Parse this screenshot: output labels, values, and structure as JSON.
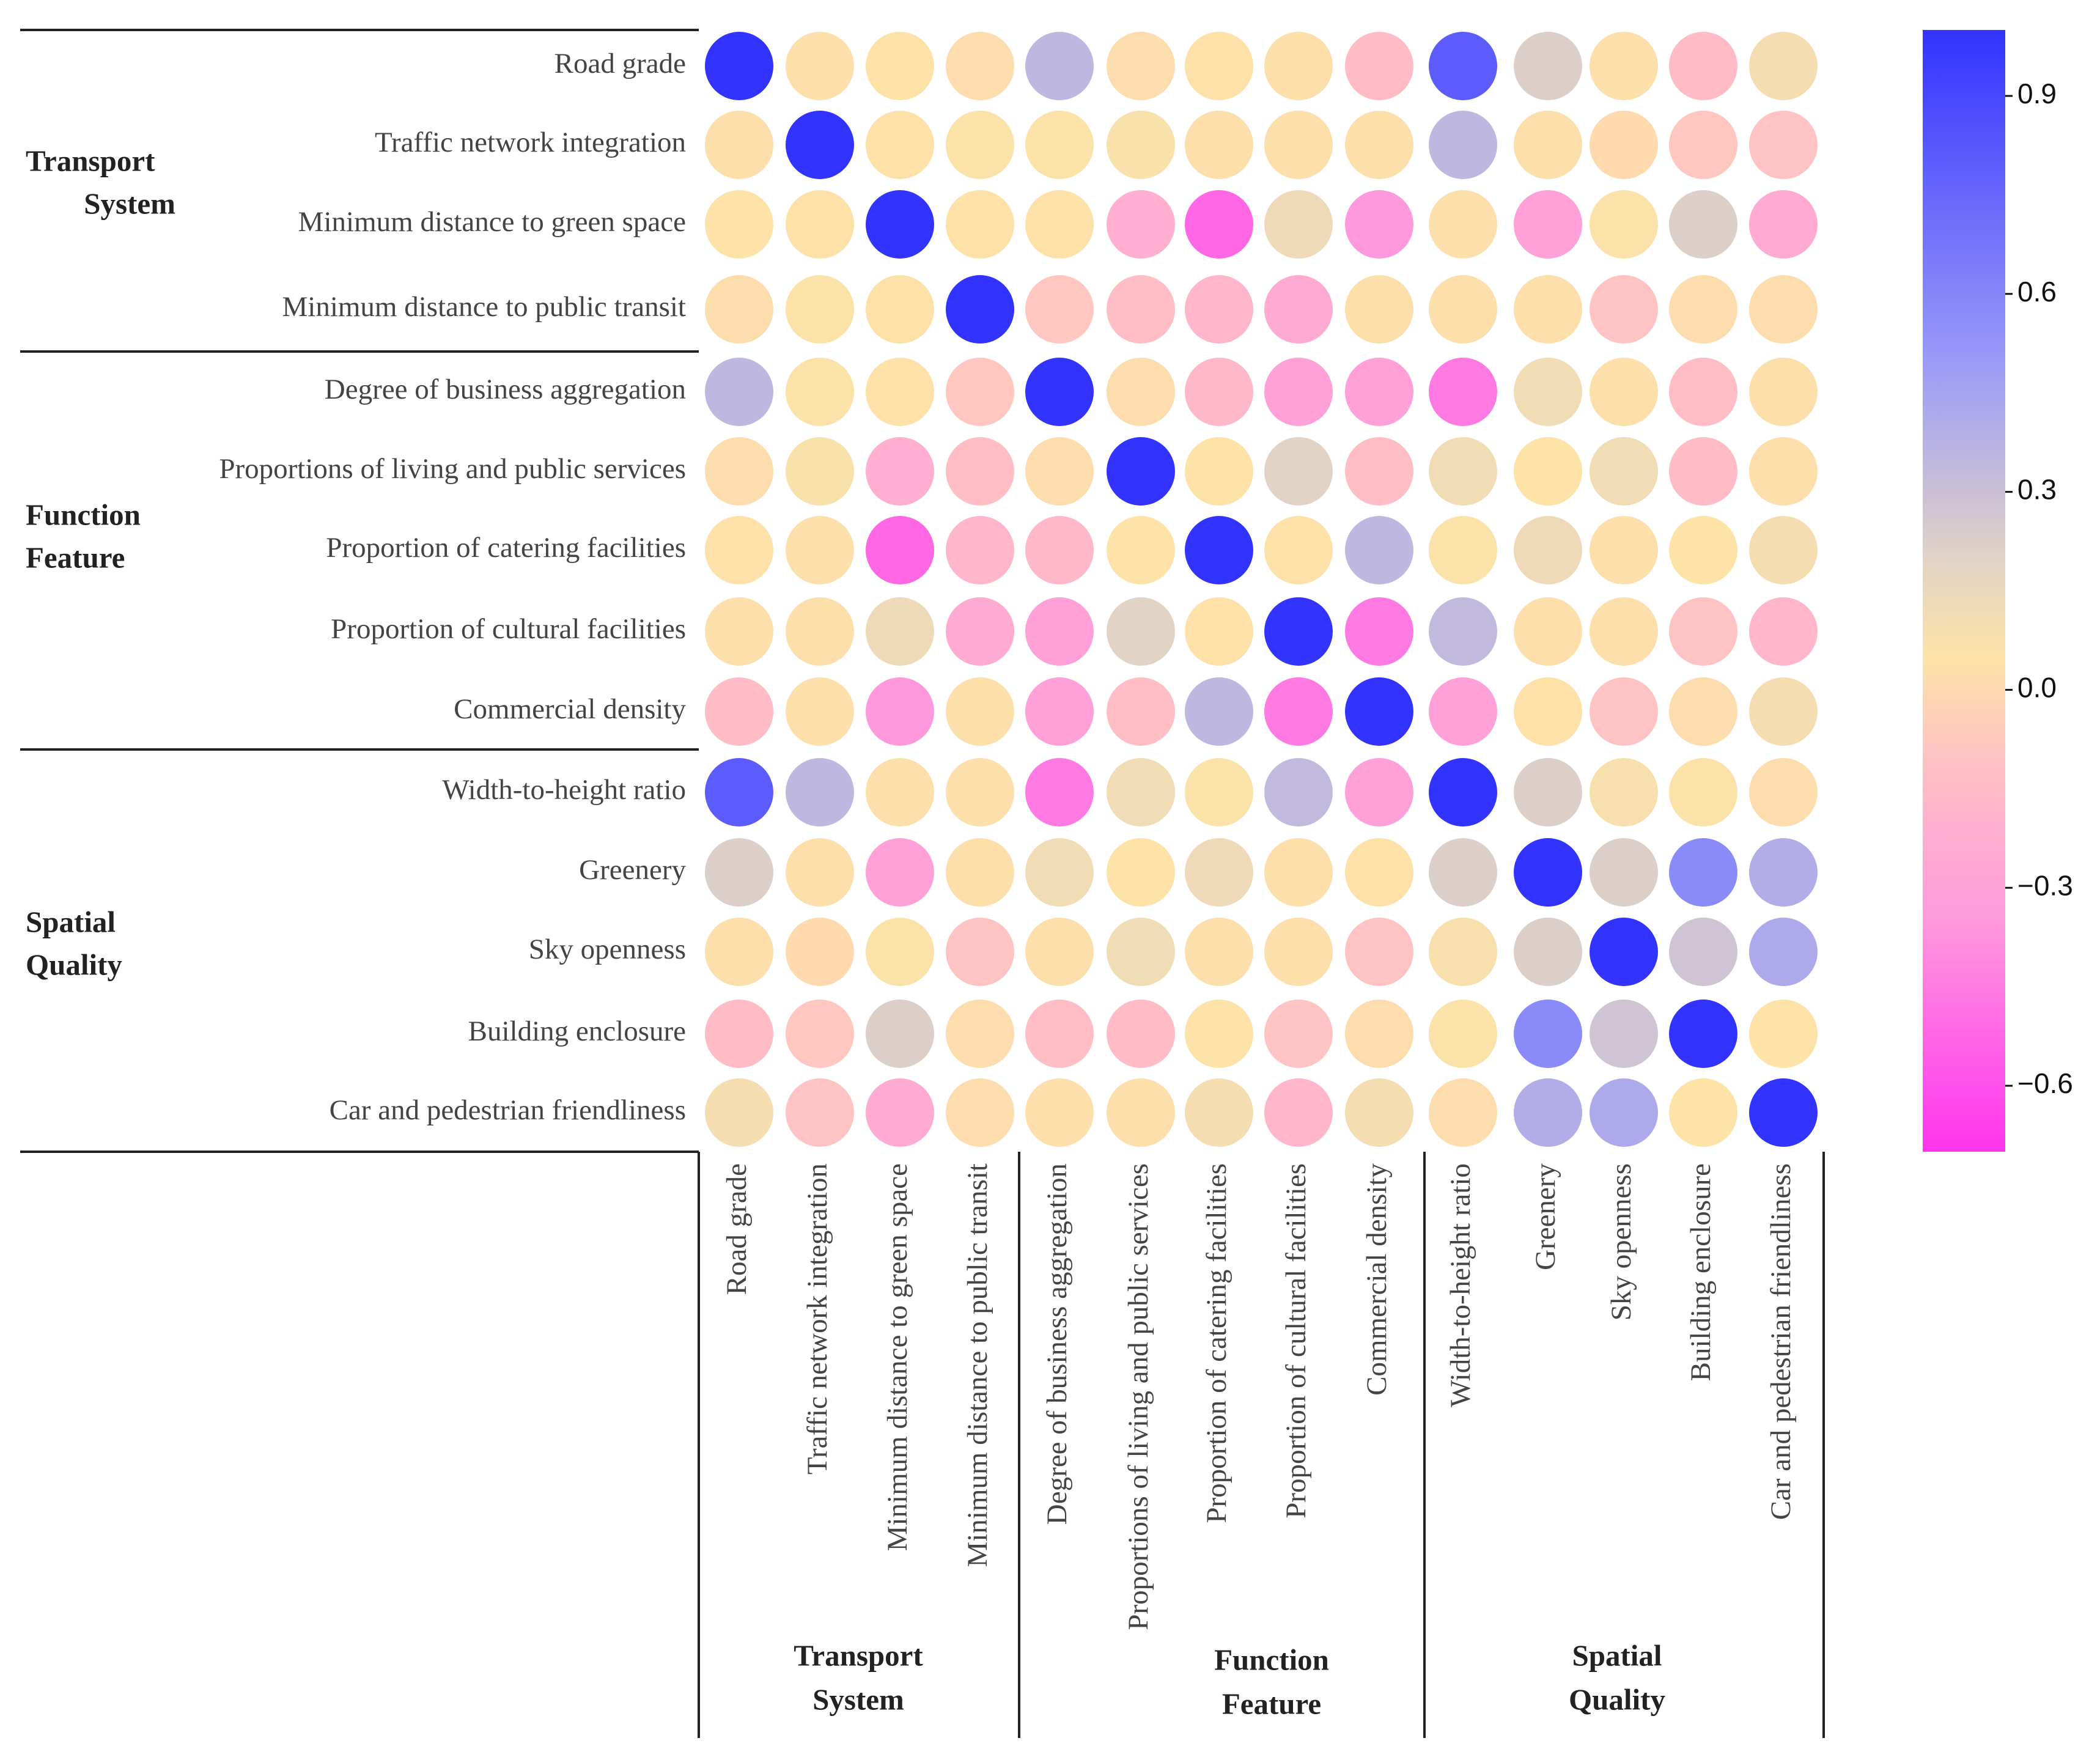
{
  "chart_data": {
    "type": "heatmap",
    "title": "",
    "variables": [
      "Road grade",
      "Traffic network integration",
      "Minimum distance to green space",
      "Minimum distance to public transit",
      "Degree of business aggregation",
      "Proportions of living and public services",
      "Proportion of catering facilities",
      "Proportion of cultural facilities",
      "Commercial density",
      "Width-to-height ratio",
      "Greenery",
      "Sky openness",
      "Building enclosure",
      "Car and pedestrian friendliness"
    ],
    "groups": [
      {
        "name_line1": "Transport",
        "name_line2": "System",
        "start": 0,
        "end": 3
      },
      {
        "name_line1": "Function",
        "name_line2": "Feature",
        "start": 4,
        "end": 8
      },
      {
        "name_line1": "Spatial",
        "name_line2": "Quality",
        "start": 9,
        "end": 13
      }
    ],
    "matrix": [
      [
        1.0,
        0.03,
        0.05,
        0.02,
        0.35,
        0.02,
        0.04,
        0.03,
        -0.14,
        0.8,
        0.22,
        0.03,
        -0.14,
        0.1
      ],
      [
        0.03,
        1.0,
        0.04,
        0.06,
        0.06,
        0.07,
        0.03,
        0.03,
        0.03,
        0.35,
        0.03,
        0.01,
        -0.08,
        -0.1
      ],
      [
        0.05,
        0.04,
        1.0,
        0.04,
        0.04,
        -0.22,
        -0.52,
        0.13,
        -0.35,
        0.03,
        -0.3,
        0.06,
        0.22,
        -0.25
      ],
      [
        0.02,
        0.06,
        0.04,
        1.0,
        -0.08,
        -0.13,
        -0.18,
        -0.25,
        0.03,
        0.03,
        0.03,
        -0.1,
        0.02,
        0.02
      ],
      [
        0.35,
        0.06,
        0.04,
        -0.08,
        1.0,
        0.02,
        -0.17,
        -0.3,
        -0.3,
        -0.46,
        0.12,
        0.03,
        -0.13,
        0.03
      ],
      [
        0.02,
        0.07,
        -0.22,
        -0.13,
        0.02,
        1.0,
        0.05,
        0.2,
        -0.13,
        0.12,
        0.05,
        0.12,
        -0.14,
        0.03
      ],
      [
        0.04,
        0.03,
        -0.52,
        -0.18,
        -0.17,
        0.05,
        1.0,
        0.04,
        0.35,
        0.06,
        0.13,
        0.03,
        0.05,
        0.1
      ],
      [
        0.03,
        0.03,
        0.13,
        -0.25,
        -0.3,
        0.2,
        0.04,
        1.0,
        -0.46,
        0.33,
        0.03,
        0.03,
        -0.1,
        -0.18
      ],
      [
        -0.14,
        0.03,
        -0.35,
        0.03,
        -0.3,
        -0.13,
        0.35,
        -0.46,
        1.0,
        -0.3,
        0.04,
        -0.1,
        0.02,
        0.1
      ],
      [
        0.8,
        0.35,
        0.03,
        0.03,
        -0.46,
        0.12,
        0.06,
        0.33,
        -0.3,
        1.0,
        0.22,
        0.08,
        0.06,
        0.02
      ],
      [
        0.22,
        0.03,
        -0.3,
        0.03,
        0.12,
        0.05,
        0.13,
        0.03,
        0.04,
        0.22,
        1.0,
        0.22,
        0.58,
        0.4
      ],
      [
        0.03,
        0.01,
        0.06,
        -0.1,
        0.03,
        0.12,
        0.03,
        0.03,
        -0.1,
        0.08,
        0.22,
        1.0,
        0.28,
        0.42
      ],
      [
        -0.14,
        -0.08,
        0.22,
        0.02,
        -0.13,
        -0.14,
        0.05,
        -0.1,
        0.02,
        0.06,
        0.58,
        0.28,
        1.0,
        0.05
      ],
      [
        0.1,
        -0.1,
        -0.25,
        0.02,
        0.03,
        0.03,
        0.1,
        -0.18,
        0.1,
        0.02,
        0.4,
        0.42,
        0.05,
        1.0
      ]
    ],
    "colorbar": {
      "range": [
        -0.7,
        1.0
      ],
      "ticks": [
        0.9,
        0.6,
        0.3,
        0.0,
        -0.3,
        -0.6
      ],
      "tick_labels": [
        "0.9",
        "0.6",
        "0.3",
        "0.0",
        "−0.3",
        "−0.6"
      ],
      "stops": [
        {
          "value": -0.7,
          "color": "#ff33ee"
        },
        {
          "value": -0.35,
          "color": "#ff99dd"
        },
        {
          "value": -0.1,
          "color": "#ffc3c3"
        },
        {
          "value": 0.05,
          "color": "#fde3a7"
        },
        {
          "value": 0.2,
          "color": "#e1d3c6"
        },
        {
          "value": 0.5,
          "color": "#9a9af8"
        },
        {
          "value": 1.0,
          "color": "#3333ff"
        }
      ]
    },
    "legend_position": "right"
  }
}
